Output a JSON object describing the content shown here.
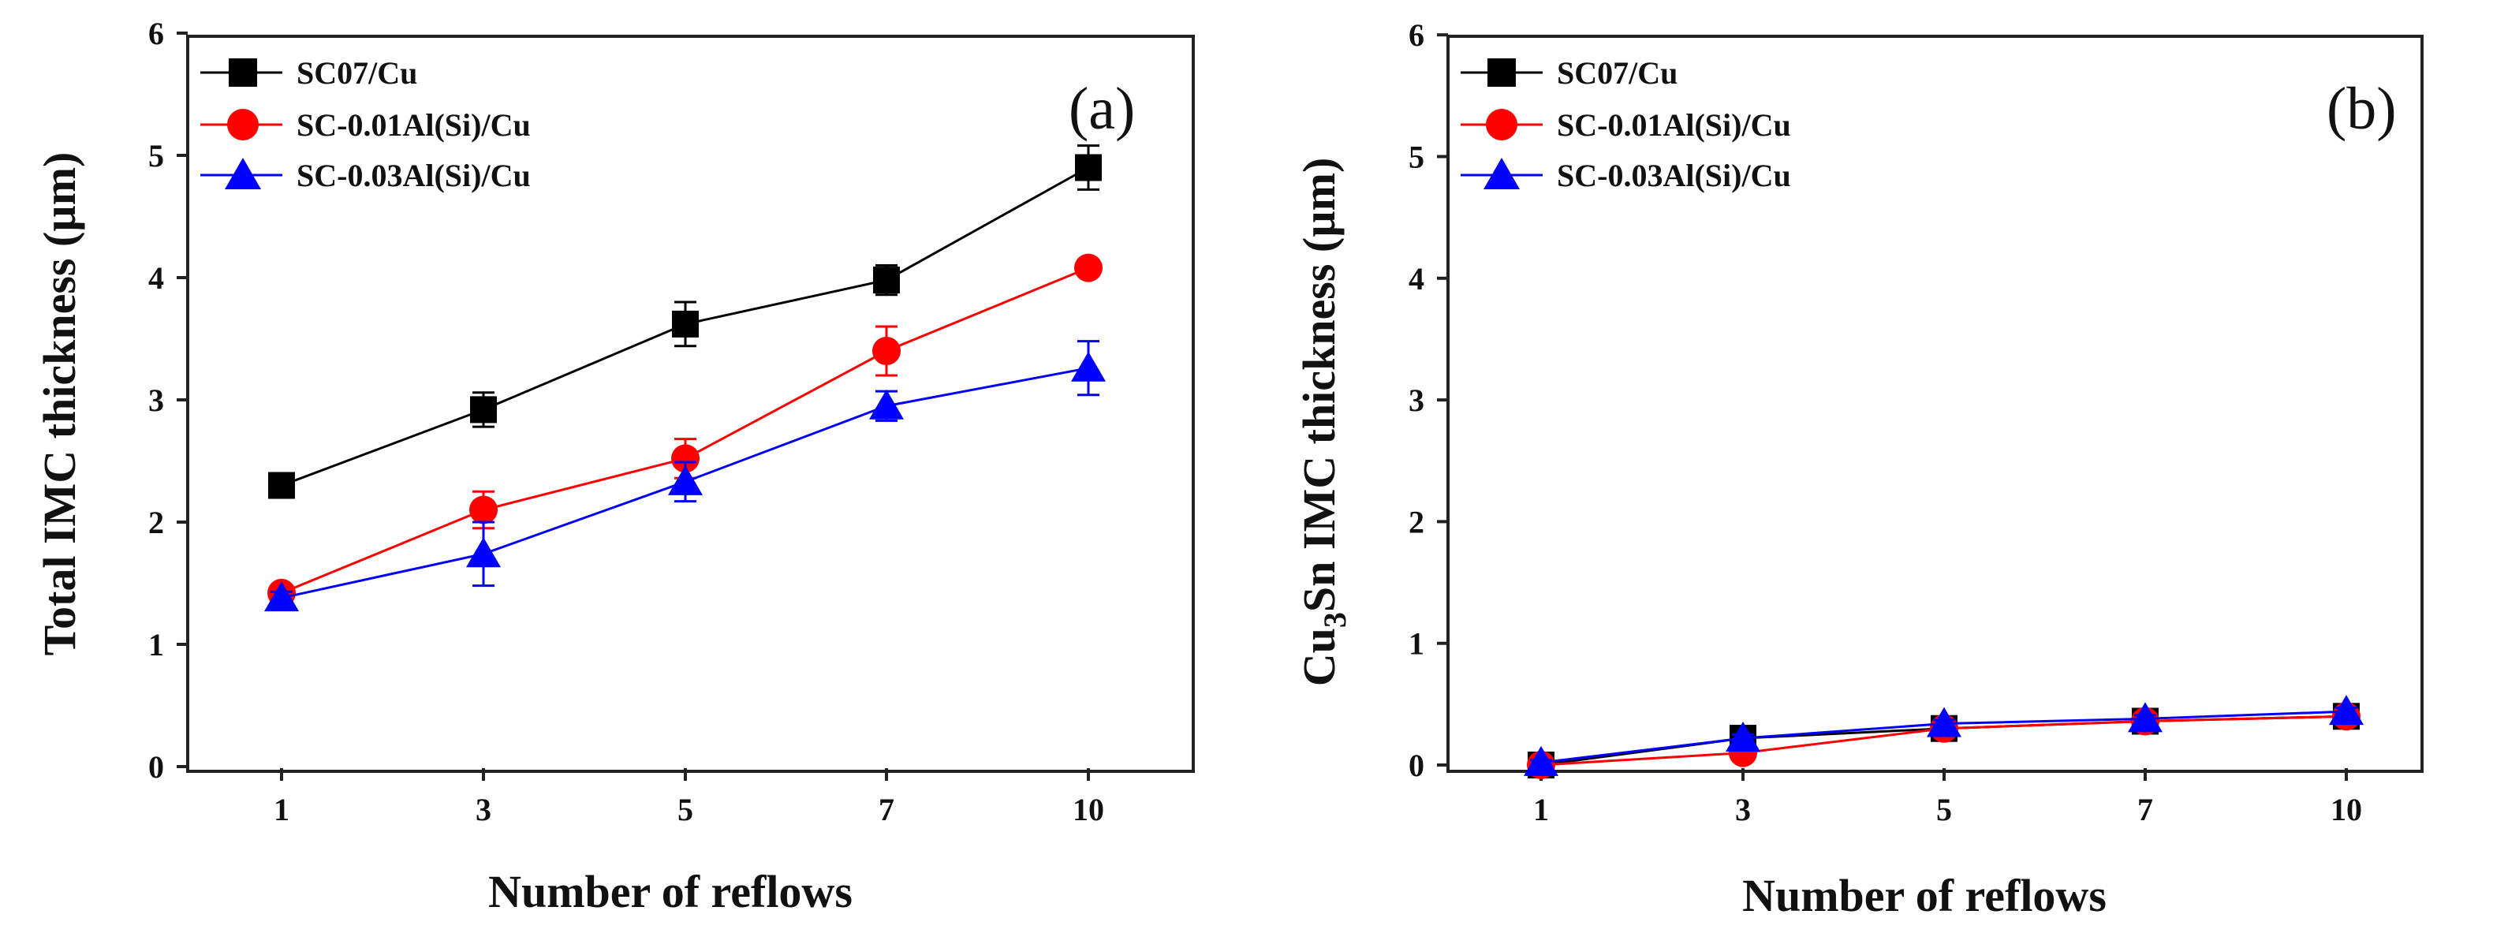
{
  "chart_data": [
    {
      "type": "line",
      "panel_label": "(a)",
      "title": "",
      "xlabel": "Number of reflows",
      "ylabel": "Total IMC thickness (µm)",
      "ylabel_parts": {
        "pre": "Total IMC thickness (µm)",
        "sub": "",
        "post": ""
      },
      "categories": [
        "1",
        "3",
        "5",
        "7",
        "10"
      ],
      "yticks": [
        0,
        1,
        2,
        3,
        4,
        5,
        6
      ],
      "ylim": [
        0,
        6
      ],
      "legend_position": "top-left",
      "series": [
        {
          "name": "SC07/Cu",
          "color": "#000000",
          "marker": "square",
          "values": [
            2.3,
            2.92,
            3.62,
            3.98,
            4.9
          ],
          "errors": [
            0.08,
            0.14,
            0.18,
            0.12,
            0.18
          ]
        },
        {
          "name": "SC-0.01Al(Si)/Cu",
          "color": "#ff0000",
          "marker": "circle",
          "values": [
            1.42,
            2.1,
            2.52,
            3.4,
            4.08
          ],
          "errors": [
            0.06,
            0.15,
            0.16,
            0.2,
            0.06
          ]
        },
        {
          "name": "SC-0.03Al(Si)/Cu",
          "color": "#0000ff",
          "marker": "triangle",
          "values": [
            1.38,
            1.74,
            2.33,
            2.95,
            3.26
          ],
          "errors": [
            0.05,
            0.26,
            0.16,
            0.12,
            0.22
          ]
        }
      ]
    },
    {
      "type": "line",
      "panel_label": "(b)",
      "title": "",
      "xlabel": "Number of reflows",
      "ylabel": "Cu3Sn IMC thickness (µm)",
      "ylabel_parts": {
        "pre": "Cu",
        "sub": "3",
        "post": "Sn IMC thickness (µm)"
      },
      "categories": [
        "1",
        "3",
        "5",
        "7",
        "10"
      ],
      "yticks": [
        0,
        1,
        2,
        3,
        4,
        5,
        6
      ],
      "ylim": [
        0,
        6
      ],
      "legend_position": "top-left",
      "series": [
        {
          "name": "SC07/Cu",
          "color": "#000000",
          "marker": "square",
          "values": [
            0.0,
            0.22,
            0.3,
            0.36,
            0.4
          ],
          "errors": [
            0.02,
            0.03,
            0.03,
            0.03,
            0.03
          ]
        },
        {
          "name": "SC-0.01Al(Si)/Cu",
          "color": "#ff0000",
          "marker": "circle",
          "values": [
            0.0,
            0.1,
            0.3,
            0.36,
            0.4
          ],
          "errors": [
            0.02,
            0.03,
            0.03,
            0.03,
            0.03
          ]
        },
        {
          "name": "SC-0.03Al(Si)/Cu",
          "color": "#0000ff",
          "marker": "triangle",
          "values": [
            0.02,
            0.22,
            0.34,
            0.38,
            0.44
          ],
          "errors": [
            0.02,
            0.03,
            0.03,
            0.03,
            0.03
          ]
        }
      ]
    }
  ]
}
